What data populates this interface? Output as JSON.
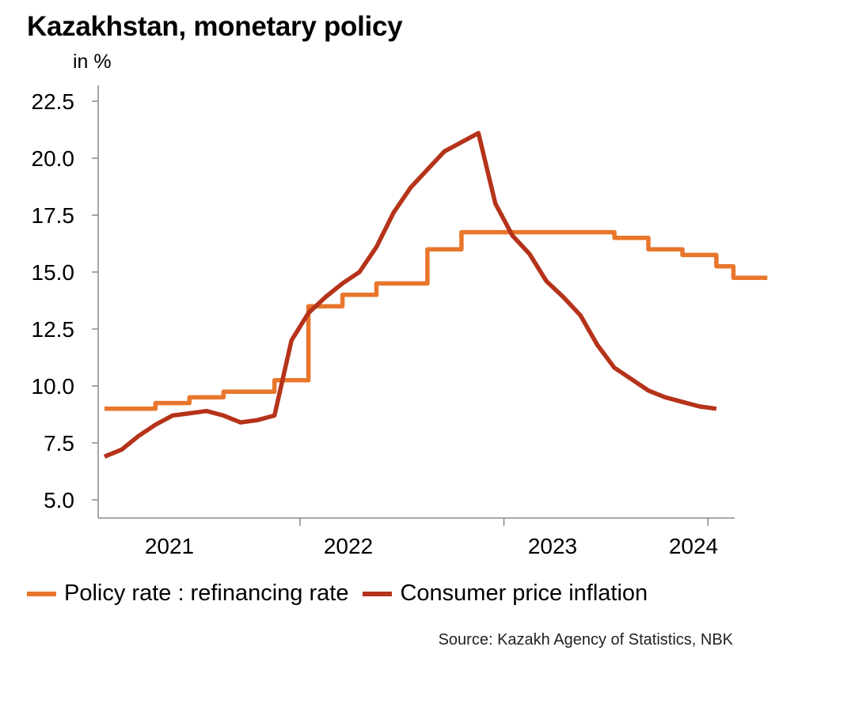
{
  "title": "Kazakhstan, monetary policy",
  "unit_label": "in %",
  "source": "Source: Kazakh Agency of Statistics, NBK",
  "colors": {
    "policy_rate": "#E8762B",
    "inflation": "#B5331A",
    "axis": "#8a8a8a"
  },
  "chart_data": {
    "type": "line",
    "ylim": [
      5.0,
      22.5
    ],
    "yticks": [
      "5.0",
      "7.5",
      "10.0",
      "12.5",
      "15.0",
      "17.5",
      "20.0",
      "22.5"
    ],
    "xlim": [
      "2021-01",
      "2024-04"
    ],
    "xticks": [
      "2021",
      "2022",
      "2023",
      "2024"
    ],
    "grid": false,
    "legend_position": "bottom",
    "series": [
      {
        "name": "Policy rate : refinancing rate",
        "color_key": "policy_rate",
        "step": true,
        "points": [
          [
            "2021-01",
            9.0
          ],
          [
            "2021-03",
            9.0
          ],
          [
            "2021-04",
            9.25
          ],
          [
            "2021-05",
            9.25
          ],
          [
            "2021-06",
            9.5
          ],
          [
            "2021-07",
            9.5
          ],
          [
            "2021-08",
            9.75
          ],
          [
            "2021-10",
            9.75
          ],
          [
            "2021-11",
            10.25
          ],
          [
            "2021-12",
            10.25
          ],
          [
            "2022-01",
            13.5
          ],
          [
            "2022-02",
            13.5
          ],
          [
            "2022-03",
            14.0
          ],
          [
            "2022-04",
            14.0
          ],
          [
            "2022-05",
            14.5
          ],
          [
            "2022-06",
            14.5
          ],
          [
            "2022-07",
            14.5
          ],
          [
            "2022-08",
            16.0
          ],
          [
            "2022-09",
            16.0
          ],
          [
            "2022-10",
            16.75
          ],
          [
            "2022-12",
            16.75
          ],
          [
            "2023-02",
            16.75
          ],
          [
            "2023-04",
            16.75
          ],
          [
            "2023-06",
            16.75
          ],
          [
            "2023-07",
            16.5
          ],
          [
            "2023-08",
            16.5
          ],
          [
            "2023-09",
            16.0
          ],
          [
            "2023-10",
            16.0
          ],
          [
            "2023-11",
            15.75
          ],
          [
            "2023-12",
            15.75
          ],
          [
            "2024-01",
            15.25
          ],
          [
            "2024-02",
            14.75
          ],
          [
            "2024-04",
            14.75
          ]
        ]
      },
      {
        "name": "Consumer price inflation",
        "color_key": "inflation",
        "step": false,
        "points": [
          [
            "2021-01",
            6.9
          ],
          [
            "2021-02",
            7.2
          ],
          [
            "2021-03",
            7.8
          ],
          [
            "2021-04",
            8.3
          ],
          [
            "2021-05",
            8.7
          ],
          [
            "2021-06",
            8.8
          ],
          [
            "2021-07",
            8.9
          ],
          [
            "2021-08",
            8.7
          ],
          [
            "2021-09",
            8.4
          ],
          [
            "2021-10",
            8.5
          ],
          [
            "2021-11",
            8.7
          ],
          [
            "2021-12",
            12.0
          ],
          [
            "2022-01",
            13.2
          ],
          [
            "2022-02",
            13.9
          ],
          [
            "2022-03",
            14.5
          ],
          [
            "2022-04",
            15.0
          ],
          [
            "2022-05",
            16.1
          ],
          [
            "2022-06",
            17.6
          ],
          [
            "2022-07",
            18.7
          ],
          [
            "2022-08",
            19.5
          ],
          [
            "2022-09",
            20.3
          ],
          [
            "2022-10",
            20.7
          ],
          [
            "2022-11",
            21.1
          ],
          [
            "2022-12",
            18.0
          ],
          [
            "2023-01",
            16.6
          ],
          [
            "2023-02",
            15.8
          ],
          [
            "2023-03",
            14.6
          ],
          [
            "2023-04",
            13.9
          ],
          [
            "2023-05",
            13.1
          ],
          [
            "2023-06",
            11.8
          ],
          [
            "2023-07",
            10.8
          ],
          [
            "2023-08",
            10.3
          ],
          [
            "2023-09",
            9.8
          ],
          [
            "2023-10",
            9.5
          ],
          [
            "2023-11",
            9.3
          ],
          [
            "2023-12",
            9.1
          ],
          [
            "2024-01",
            9.0
          ]
        ]
      }
    ]
  }
}
